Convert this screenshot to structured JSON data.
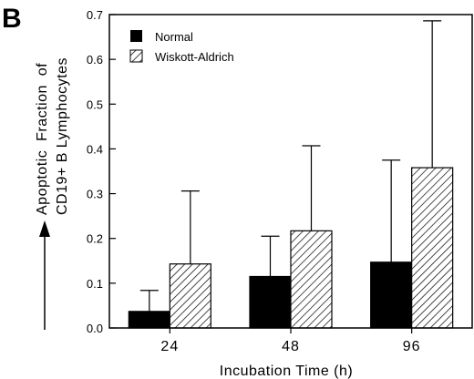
{
  "panel_label": "B",
  "chart_data": {
    "type": "bar",
    "categories": [
      "24",
      "48",
      "96"
    ],
    "series": [
      {
        "name": "Normal",
        "values": [
          0.037,
          0.115,
          0.147
        ],
        "errors": [
          0.047,
          0.09,
          0.228
        ],
        "style": "solid",
        "color": "#000000"
      },
      {
        "name": "Wiskott-Aldrich",
        "values": [
          0.143,
          0.217,
          0.358
        ],
        "errors": [
          0.163,
          0.19,
          0.328
        ],
        "style": "hatched",
        "color": "#000000"
      }
    ],
    "xlabel": "Incubation Time (h)",
    "ylabel_line1": "Apoptotic  Fraction  of",
    "ylabel_line2": "CD19+ B Lymphocytes",
    "ylim": [
      0,
      0.7
    ],
    "yticks": [
      0.0,
      0.1,
      0.2,
      0.3,
      0.4,
      0.5,
      0.6,
      0.7
    ],
    "ytick_labels": [
      "0.0",
      "0.1",
      "0.2",
      "0.3",
      "0.4",
      "0.5",
      "0.6",
      "0.7"
    ],
    "grid": false,
    "legend_position": "top-left",
    "error_bars": "upper"
  }
}
